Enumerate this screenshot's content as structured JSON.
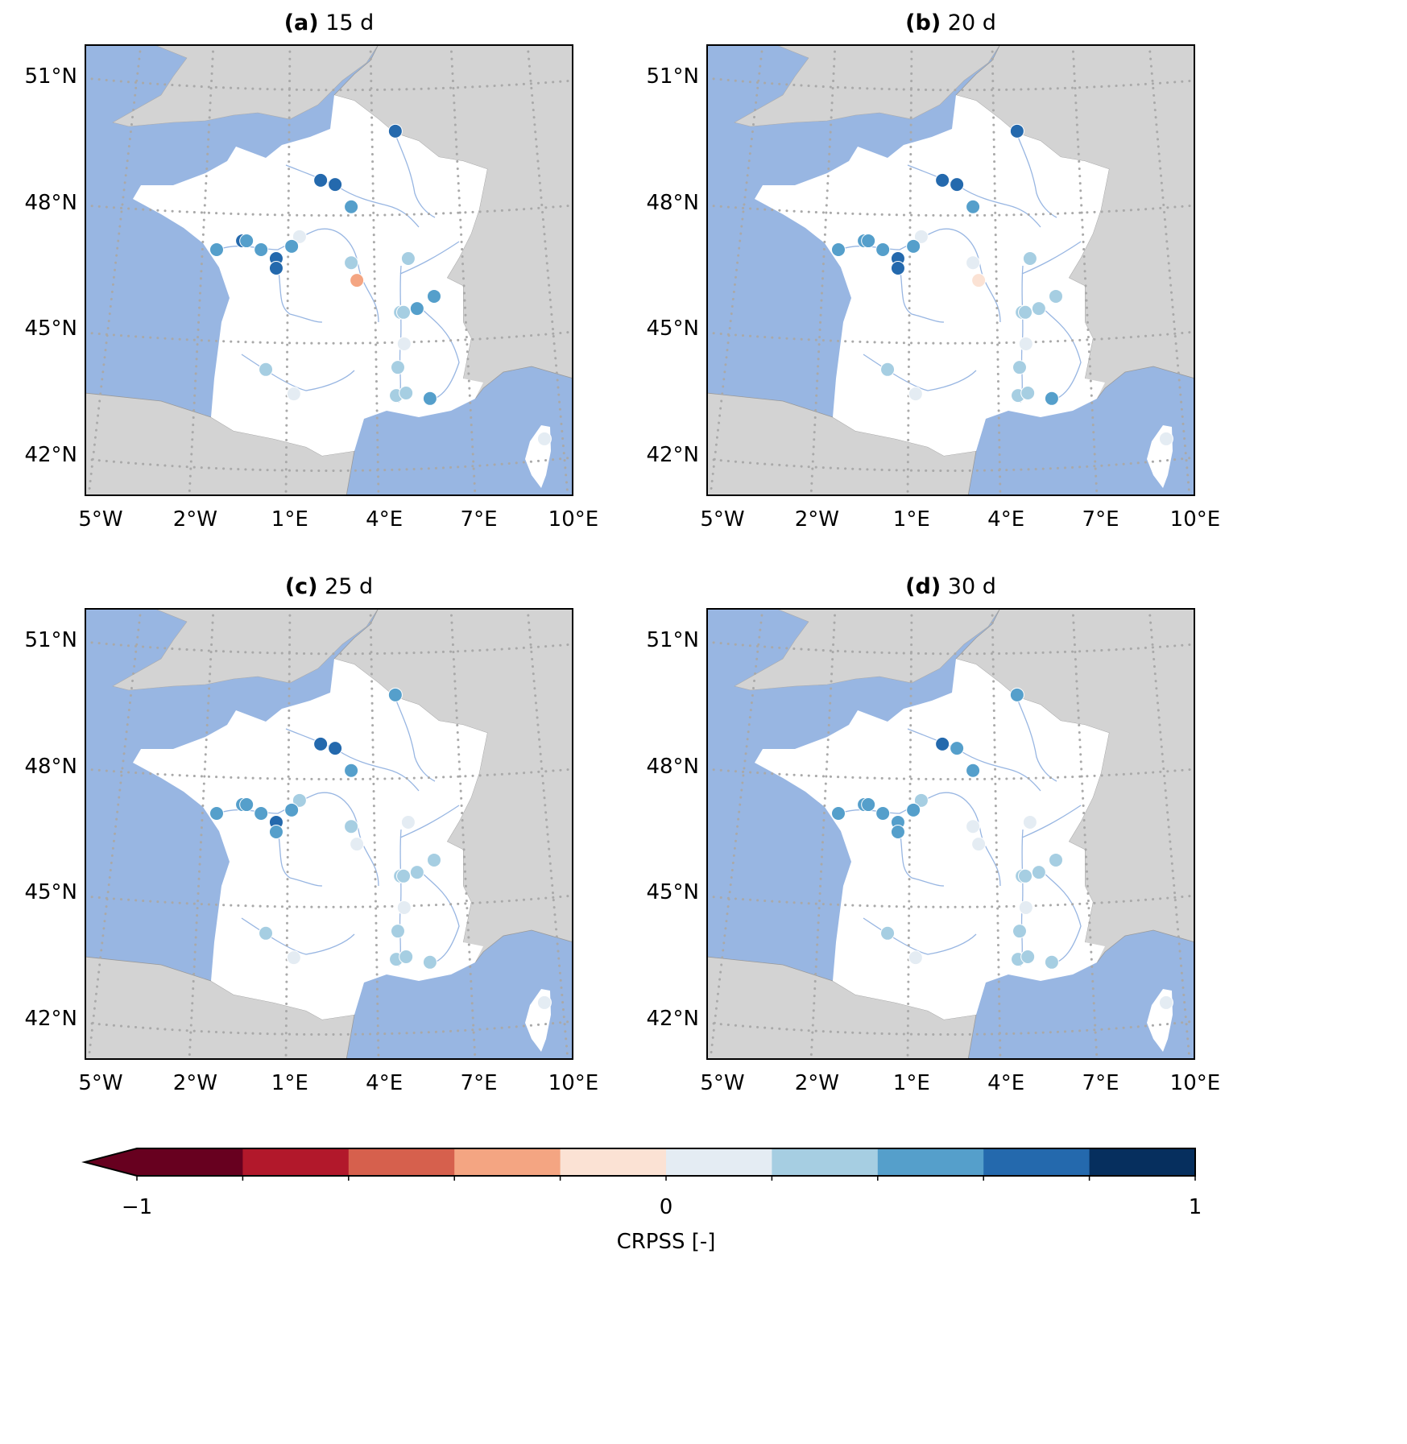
{
  "panels": [
    {
      "label": "(a)",
      "title": "15 d",
      "values": [
        0.7,
        0.7,
        0.7,
        0.5,
        0.1,
        0.7,
        0.5,
        0.5,
        0.5,
        0.5,
        0.7,
        0.7,
        0.3,
        -0.3,
        0.3,
        0.5,
        0.5,
        0.3,
        0.3,
        0.1,
        0.3,
        0.3,
        0.1,
        0.3,
        0.3,
        0.5,
        0.1
      ]
    },
    {
      "label": "(b)",
      "title": "20 d",
      "values": [
        0.7,
        0.7,
        0.7,
        0.5,
        0.1,
        0.5,
        0.5,
        0.5,
        0.5,
        0.5,
        0.7,
        0.7,
        0.1,
        -0.1,
        0.3,
        0.3,
        0.3,
        0.3,
        0.3,
        0.1,
        0.3,
        0.3,
        0.1,
        0.3,
        0.3,
        0.5,
        0.1
      ]
    },
    {
      "label": "(c)",
      "title": "25 d",
      "values": [
        0.5,
        0.7,
        0.7,
        0.5,
        0.3,
        0.5,
        0.5,
        0.5,
        0.5,
        0.5,
        0.7,
        0.5,
        0.3,
        0.1,
        0.1,
        0.3,
        0.3,
        0.3,
        0.3,
        0.1,
        0.3,
        0.3,
        0.1,
        0.3,
        0.3,
        0.3,
        0.1
      ]
    },
    {
      "label": "(d)",
      "title": "30 d",
      "values": [
        0.5,
        0.7,
        0.5,
        0.5,
        0.3,
        0.5,
        0.5,
        0.5,
        0.5,
        0.5,
        0.5,
        0.5,
        0.1,
        0.1,
        0.1,
        0.3,
        0.3,
        0.3,
        0.3,
        0.1,
        0.3,
        0.3,
        0.1,
        0.3,
        0.3,
        0.3,
        0.1
      ]
    }
  ],
  "stations": [
    [
      4.35,
      49.72
    ],
    [
      1.98,
      48.55
    ],
    [
      2.44,
      48.45
    ],
    [
      2.95,
      47.92
    ],
    [
      1.31,
      47.21
    ],
    [
      -0.5,
      47.11
    ],
    [
      -0.37,
      47.11
    ],
    [
      -1.32,
      46.9
    ],
    [
      0.09,
      46.9
    ],
    [
      1.06,
      46.98
    ],
    [
      0.57,
      46.69
    ],
    [
      0.57,
      46.46
    ],
    [
      2.95,
      46.59
    ],
    [
      3.13,
      46.17
    ],
    [
      4.76,
      46.69
    ],
    [
      5.58,
      45.79
    ],
    [
      5.04,
      45.5
    ],
    [
      4.51,
      45.41
    ],
    [
      4.61,
      45.41
    ],
    [
      4.63,
      44.66
    ],
    [
      4.43,
      44.1
    ],
    [
      0.24,
      44.05
    ],
    [
      1.13,
      43.47
    ],
    [
      4.38,
      43.43
    ],
    [
      4.69,
      43.49
    ],
    [
      5.45,
      43.36
    ],
    [
      9.08,
      42.4
    ]
  ],
  "axes": {
    "lat_ticks": [
      "51°N",
      "48°N",
      "45°N",
      "42°N"
    ],
    "lat_values": [
      51,
      48,
      45,
      42
    ],
    "lon_ticks": [
      "5°W",
      "2°W",
      "1°E",
      "4°E",
      "7°E",
      "10°E"
    ],
    "lon_values": [
      -5,
      -2,
      1,
      4,
      7,
      10
    ]
  },
  "colors": {
    "sea": "#98b6e2",
    "land": "#d3d3d3",
    "france": "#ffffff",
    "river": "#98b6e2",
    "grid": "#a9a9a9"
  },
  "colorbar": {
    "label": "CRPSS [-]",
    "ticks": [
      "−1",
      "0",
      "1"
    ],
    "tick_values": [
      -1,
      0,
      1
    ],
    "range": [
      -1,
      1
    ],
    "extend": "min",
    "boundaries": [
      -1,
      -0.8,
      -0.6,
      -0.4,
      -0.2,
      0,
      0.2,
      0.4,
      0.6,
      0.8,
      1
    ],
    "bin_colors": [
      "#67001f",
      "#b2182b",
      "#d6604d",
      "#f4a582",
      "#fbe2d4",
      "#e4ecf3",
      "#a6cee2",
      "#559fcb",
      "#2469ad",
      "#062f5e"
    ],
    "under_color": "#67001f"
  }
}
